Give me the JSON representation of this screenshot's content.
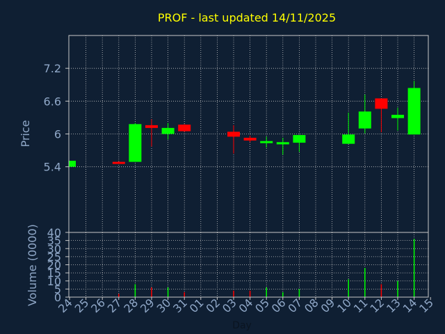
{
  "colors": {
    "background": "#0f1f33",
    "title": "#ffff00",
    "text": "#90a8c8",
    "frame": "#c8c8c8",
    "grid": "#c8c8c8",
    "up": "#00ff00",
    "down": "#ff0000"
  },
  "chart_data": [
    {
      "type": "candlestick",
      "title": "PROF - last updated 14/11/2025",
      "ylabel": "Price",
      "ylim": [
        4.2,
        7.8
      ],
      "yticks": [
        5.4,
        6,
        6.6,
        7.2
      ],
      "ytick_labels": [
        "5.4",
        "6",
        "6.6",
        "7.2"
      ],
      "grid": true,
      "categories": [
        "24",
        "25",
        "26",
        "27",
        "28",
        "29",
        "30",
        "31",
        "01",
        "02",
        "03",
        "04",
        "05",
        "06",
        "07",
        "08",
        "09",
        "10",
        "11",
        "12",
        "13",
        "14",
        "15"
      ],
      "candles": [
        {
          "day": "24",
          "open": 5.4,
          "close": 5.51,
          "high": 5.51,
          "low": 5.4
        },
        {
          "day": "27",
          "open": 5.49,
          "close": 5.46,
          "high": 5.5,
          "low": 5.46
        },
        {
          "day": "28",
          "open": 5.49,
          "close": 6.18,
          "high": 6.2,
          "low": 5.49
        },
        {
          "day": "29",
          "open": 6.16,
          "close": 6.11,
          "high": 6.27,
          "low": 5.77
        },
        {
          "day": "30",
          "open": 6.0,
          "close": 6.11,
          "high": 6.2,
          "low": 5.9
        },
        {
          "day": "31",
          "open": 6.17,
          "close": 6.05,
          "high": 6.18,
          "low": 6.04
        },
        {
          "day": "03",
          "open": 6.04,
          "close": 5.95,
          "high": 6.16,
          "low": 5.64
        },
        {
          "day": "04",
          "open": 5.93,
          "close": 5.88,
          "high": 5.97,
          "low": 5.85
        },
        {
          "day": "05",
          "open": 5.84,
          "close": 5.87,
          "high": 5.95,
          "low": 5.75
        },
        {
          "day": "06",
          "open": 5.81,
          "close": 5.85,
          "high": 5.93,
          "low": 5.62
        },
        {
          "day": "07",
          "open": 5.84,
          "close": 5.98,
          "high": 5.98,
          "low": 5.67
        },
        {
          "day": "10",
          "open": 5.82,
          "close": 5.99,
          "high": 6.39,
          "low": 5.82
        },
        {
          "day": "11",
          "open": 6.1,
          "close": 6.41,
          "high": 6.72,
          "low": 6.01
        },
        {
          "day": "12",
          "open": 6.65,
          "close": 6.46,
          "high": 6.65,
          "low": 6.03
        },
        {
          "day": "13",
          "open": 6.29,
          "close": 6.35,
          "high": 6.48,
          "low": 6.06
        },
        {
          "day": "14",
          "open": 5.99,
          "close": 6.84,
          "high": 6.97,
          "low": 5.99
        }
      ]
    },
    {
      "type": "bar",
      "ylabel": "Volume (0000)",
      "xlabel": "Day",
      "ylim": [
        0,
        40
      ],
      "yticks": [
        0,
        5,
        10,
        15,
        20,
        25,
        30,
        35,
        40
      ],
      "ytick_labels": [
        "0",
        "5",
        "10",
        "15",
        "20",
        "25",
        "30",
        "35",
        "40"
      ],
      "categories": [
        "24",
        "25",
        "26",
        "27",
        "28",
        "29",
        "30",
        "31",
        "01",
        "02",
        "03",
        "04",
        "05",
        "06",
        "07",
        "08",
        "09",
        "10",
        "11",
        "12",
        "13",
        "14",
        "15"
      ],
      "series": [
        {
          "values": [
            {
              "day": "27",
              "value": 2,
              "direction": "down"
            },
            {
              "day": "28",
              "value": 8,
              "direction": "up"
            },
            {
              "day": "29",
              "value": 6,
              "direction": "down"
            },
            {
              "day": "30",
              "value": 6,
              "direction": "up"
            },
            {
              "day": "31",
              "value": 3,
              "direction": "down"
            },
            {
              "day": "03",
              "value": 4,
              "direction": "down"
            },
            {
              "day": "04",
              "value": 4,
              "direction": "down"
            },
            {
              "day": "05",
              "value": 6,
              "direction": "up"
            },
            {
              "day": "06",
              "value": 3,
              "direction": "up"
            },
            {
              "day": "07",
              "value": 5,
              "direction": "up"
            },
            {
              "day": "10",
              "value": 11,
              "direction": "up"
            },
            {
              "day": "11",
              "value": 18,
              "direction": "up"
            },
            {
              "day": "12",
              "value": 8,
              "direction": "down"
            },
            {
              "day": "13",
              "value": 10,
              "direction": "up"
            },
            {
              "day": "14",
              "value": 36,
              "direction": "up"
            }
          ]
        }
      ]
    }
  ]
}
